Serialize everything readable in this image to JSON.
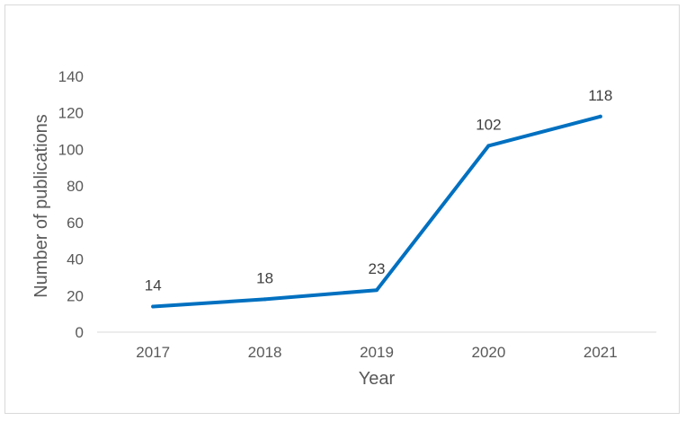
{
  "chart_data": {
    "type": "line",
    "xlabel": "Year",
    "ylabel": "Number of publications",
    "categories": [
      "2017",
      "2018",
      "2019",
      "2020",
      "2021"
    ],
    "series": [
      {
        "values": [
          14,
          18,
          23,
          102,
          118
        ],
        "color": "#0070c0"
      }
    ],
    "data_labels": [
      "14",
      "18",
      "23",
      "102",
      "118"
    ],
    "ylim": [
      0,
      140
    ],
    "y_ticks": [
      "0",
      "20",
      "40",
      "60",
      "80",
      "100",
      "120",
      "140"
    ],
    "grid": false,
    "legend": "none"
  }
}
